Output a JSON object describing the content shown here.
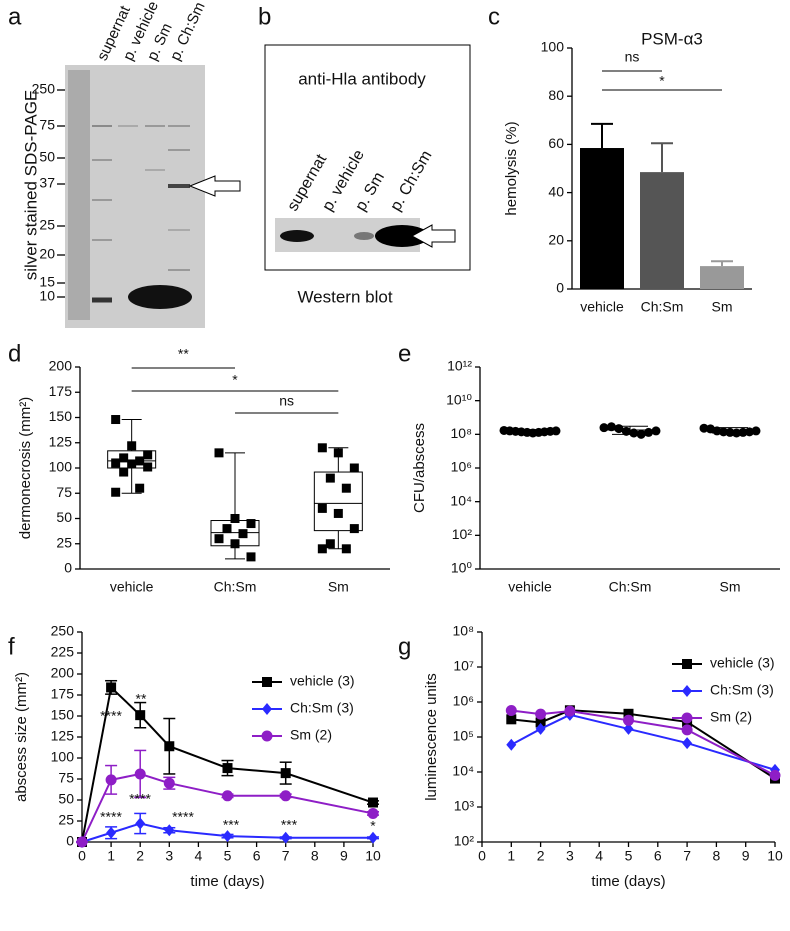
{
  "figure_labels": [
    "a",
    "b",
    "c",
    "d",
    "e",
    "f",
    "g"
  ],
  "gel": {
    "ylabel": "silver stained SDS-PAGE",
    "lanes": [
      "supernat",
      "p. vehicle",
      "p. Sm",
      "p. Ch:Sm"
    ],
    "markers": [
      250,
      75,
      50,
      37,
      25,
      20,
      15,
      10
    ]
  },
  "western_blot": {
    "title": "anti-Hla antibody",
    "lanes": [
      "supernat",
      "p. vehicle",
      "p. Sm",
      "p. Ch:Sm"
    ],
    "caption": "Western blot"
  },
  "chart_data": [
    {
      "type": "bar",
      "title": "PSM-α3",
      "ylabel": "hemolysis (%)",
      "categories": [
        "vehicle",
        "Ch:Sm",
        "Sm"
      ],
      "values": [
        58.5,
        48.5,
        9.5
      ],
      "errors": [
        10,
        12,
        2
      ],
      "colors": [
        "#000000",
        "#555555",
        "#999999"
      ],
      "ylim": [
        0,
        100
      ],
      "yticks": [
        0,
        20,
        40,
        60,
        80,
        100
      ],
      "annotations": [
        "ns",
        "*"
      ]
    },
    {
      "type": "box",
      "ylabel": "dermonecrosis (mm²)",
      "categories": [
        "vehicle",
        "Ch:Sm",
        "Sm"
      ],
      "whisker_low": [
        75,
        10,
        20
      ],
      "q1": [
        100,
        23,
        38
      ],
      "median": [
        107,
        36,
        65
      ],
      "q3": [
        117,
        48,
        96
      ],
      "whisker_high": [
        148,
        115,
        120
      ],
      "points": [
        [
          148,
          122,
          113,
          110,
          107,
          105,
          104,
          101,
          96,
          80,
          76
        ],
        [
          115,
          50,
          45,
          40,
          35,
          30,
          25,
          12
        ],
        [
          120,
          115,
          100,
          90,
          80,
          60,
          55,
          40,
          25,
          20,
          20
        ]
      ],
      "ylim": [
        0,
        200
      ],
      "yticks": [
        0,
        25,
        50,
        75,
        100,
        125,
        150,
        175,
        200
      ],
      "annotations": [
        "**",
        "*",
        "ns"
      ]
    },
    {
      "type": "scatter",
      "log_scale": true,
      "ylabel": "CFU/abscess",
      "categories": [
        "vehicle",
        "Ch:Sm",
        "Sm"
      ],
      "values": [
        150000000,
        180000000,
        170000000
      ],
      "err_low": [
        120000000,
        100000000,
        120000000
      ],
      "err_high": [
        190000000,
        300000000,
        250000000
      ],
      "points": [
        [
          170000000,
          160000000,
          150000000,
          140000000,
          130000000,
          120000000,
          130000000,
          140000000,
          150000000,
          160000000
        ],
        [
          250000000,
          280000000,
          220000000,
          150000000,
          120000000,
          100000000,
          130000000,
          160000000
        ],
        [
          230000000,
          210000000,
          160000000,
          140000000,
          130000000,
          120000000,
          130000000,
          140000000,
          160000000
        ]
      ],
      "ylim": [
        1,
        1000000000000
      ],
      "yticks": [
        {
          "value": 1,
          "label": "10⁰"
        },
        {
          "value": 100,
          "label": "10²"
        },
        {
          "value": 10000,
          "label": "10⁴"
        },
        {
          "value": 1000000,
          "label": "10⁶"
        },
        {
          "value": 100000000,
          "label": "10⁸"
        },
        {
          "value": 10000000000,
          "label": "10¹⁰"
        },
        {
          "value": 1000000000000,
          "label": "10¹²"
        }
      ]
    },
    {
      "type": "line",
      "xlabel": "time (days)",
      "ylabel": "abscess size (mm²)",
      "x": [
        0,
        1,
        2,
        3,
        5,
        7,
        10
      ],
      "series": [
        {
          "name": "vehicle (3)",
          "color": "#000000",
          "marker": "square",
          "values": [
            0,
            184,
            151,
            114,
            88,
            82,
            47
          ],
          "errors": [
            0,
            8,
            15,
            33,
            9,
            13,
            2
          ]
        },
        {
          "name": "Ch:Sm (3)",
          "color": "#2a2aff",
          "marker": "diamond",
          "values": [
            0,
            11,
            22,
            14,
            7,
            5,
            5
          ],
          "errors": [
            0,
            7,
            12,
            3,
            2,
            1,
            1
          ]
        },
        {
          "name": "Sm (2)",
          "color": "#8e1ec6",
          "marker": "circle",
          "values": [
            0,
            74,
            81,
            70,
            55,
            55,
            34
          ],
          "errors": [
            0,
            17,
            28,
            7,
            2,
            2,
            2
          ]
        }
      ],
      "xlim": [
        0,
        10
      ],
      "xticks": [
        0,
        1,
        2,
        3,
        4,
        5,
        6,
        7,
        8,
        9,
        10
      ],
      "ylim": [
        0,
        250
      ],
      "yticks": [
        0,
        25,
        50,
        75,
        100,
        125,
        150,
        175,
        200,
        225,
        250
      ],
      "annotations": [
        "****",
        "**",
        "****",
        "****",
        "****",
        "***",
        "***",
        "*"
      ],
      "legend": "upper right"
    },
    {
      "type": "line",
      "log_scale": true,
      "xlabel": "time (days)",
      "ylabel": "luminescence units",
      "x": [
        1,
        2,
        3,
        5,
        7,
        10
      ],
      "series": [
        {
          "name": "vehicle (3)",
          "color": "#000000",
          "marker": "square",
          "values": [
            320000,
            260000,
            580000,
            460000,
            270000,
            6500
          ]
        },
        {
          "name": "Ch:Sm (3)",
          "color": "#2a2aff",
          "marker": "diamond",
          "values": [
            60000,
            170000,
            430000,
            170000,
            67000,
            11500
          ]
        },
        {
          "name": "Sm (2)",
          "color": "#8e1ec6",
          "marker": "circle",
          "values": [
            570000,
            450000,
            550000,
            300000,
            160000,
            8000
          ]
        }
      ],
      "xlim": [
        0,
        10
      ],
      "xticks": [
        0,
        1,
        2,
        3,
        4,
        5,
        6,
        7,
        8,
        9,
        10
      ],
      "ylim": [
        100,
        100000000
      ],
      "yticks": [
        {
          "value": 100,
          "label": "10²"
        },
        {
          "value": 1000,
          "label": "10³"
        },
        {
          "value": 10000,
          "label": "10⁴"
        },
        {
          "value": 100000,
          "label": "10⁵"
        },
        {
          "value": 1000000,
          "label": "10⁶"
        },
        {
          "value": 10000000,
          "label": "10⁷"
        },
        {
          "value": 100000000,
          "label": "10⁸"
        }
      ],
      "legend": "upper right"
    }
  ]
}
